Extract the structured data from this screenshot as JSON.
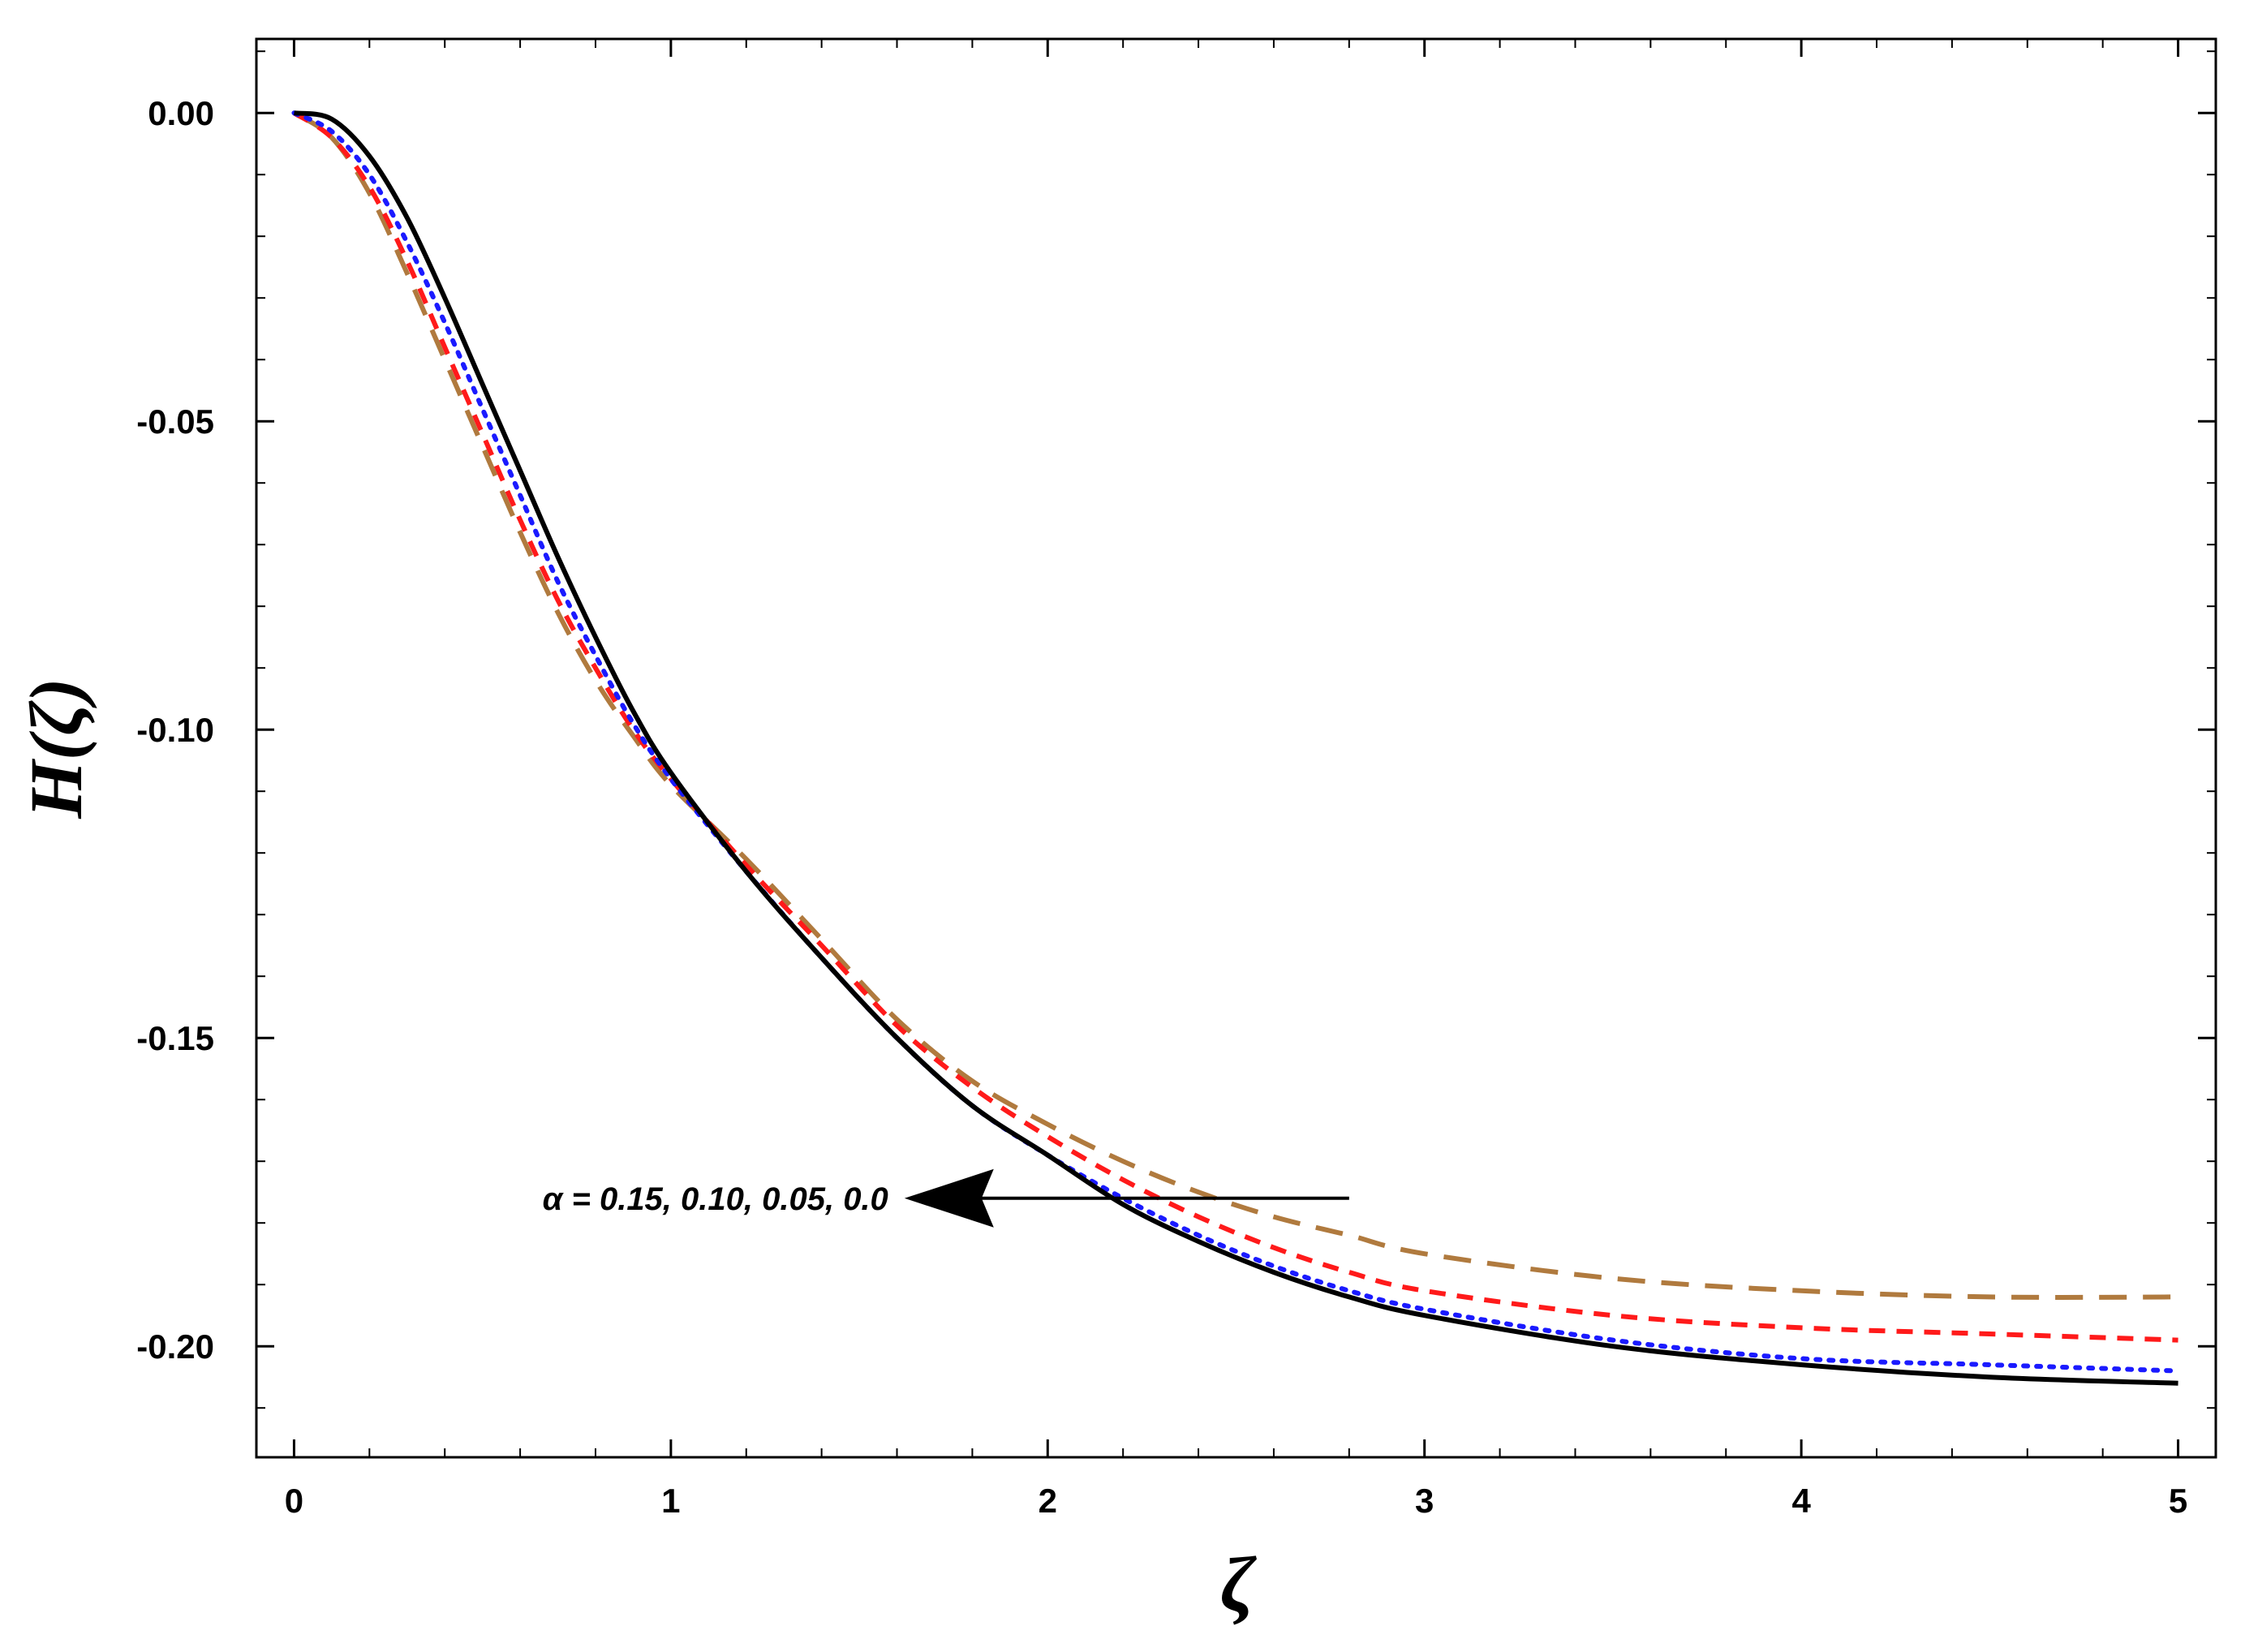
{
  "chart_data": {
    "type": "line",
    "xlabel": "ζ",
    "ylabel": "H(ζ)",
    "xlim": [
      -0.1,
      5.1
    ],
    "ylim": [
      -0.218,
      0.012
    ],
    "x_ticks": [
      "0",
      "1",
      "2",
      "3",
      "4",
      "5"
    ],
    "y_ticks": [
      "0.00",
      "-0.05",
      "-0.10",
      "-0.15",
      "-0.20"
    ],
    "grid": false,
    "legend": "none",
    "annotation": {
      "text": "α = 0.15, 0.10, 0.05, 0.0",
      "arrow_from": [
        2.8,
        -0.176
      ],
      "arrow_to": [
        1.62,
        -0.176
      ]
    },
    "x": [
      0,
      0.1,
      0.2,
      0.3,
      0.4,
      0.5,
      0.6,
      0.7,
      0.8,
      0.9,
      1.0,
      1.2,
      1.4,
      1.6,
      1.8,
      2.0,
      2.2,
      2.4,
      2.6,
      2.8,
      3.0,
      3.5,
      4.0,
      4.5,
      5.0
    ],
    "series": [
      {
        "color": "#b07a3e",
        "dash": "dashed",
        "values": [
          0,
          -0.004,
          -0.013,
          -0.026,
          -0.04,
          -0.054,
          -0.068,
          -0.081,
          -0.092,
          -0.101,
          -0.109,
          -0.121,
          -0.134,
          -0.147,
          -0.157,
          -0.164,
          -0.17,
          -0.175,
          -0.179,
          -0.182,
          -0.185,
          -0.189,
          -0.191,
          -0.192,
          -0.192
        ]
      },
      {
        "color": "#ff1a1a",
        "dash": "short-dashed",
        "values": [
          0,
          -0.004,
          -0.012,
          -0.024,
          -0.038,
          -0.052,
          -0.066,
          -0.079,
          -0.09,
          -0.1,
          -0.108,
          -0.122,
          -0.135,
          -0.148,
          -0.158,
          -0.166,
          -0.173,
          -0.179,
          -0.184,
          -0.188,
          -0.191,
          -0.195,
          -0.197,
          -0.198,
          -0.199
        ]
      },
      {
        "color": "#1a1aff",
        "dash": "dotted",
        "values": [
          0,
          -0.003,
          -0.01,
          -0.021,
          -0.034,
          -0.048,
          -0.062,
          -0.076,
          -0.088,
          -0.099,
          -0.108,
          -0.123,
          -0.137,
          -0.15,
          -0.161,
          -0.169,
          -0.176,
          -0.182,
          -0.187,
          -0.191,
          -0.194,
          -0.199,
          -0.202,
          -0.203,
          -0.204
        ]
      },
      {
        "color": "#000000",
        "dash": "solid",
        "values": [
          0,
          -0.001,
          -0.007,
          -0.017,
          -0.03,
          -0.044,
          -0.058,
          -0.072,
          -0.085,
          -0.097,
          -0.107,
          -0.123,
          -0.137,
          -0.15,
          -0.161,
          -0.169,
          -0.177,
          -0.183,
          -0.188,
          -0.192,
          -0.195,
          -0.2,
          -0.203,
          -0.205,
          -0.206
        ]
      }
    ]
  }
}
